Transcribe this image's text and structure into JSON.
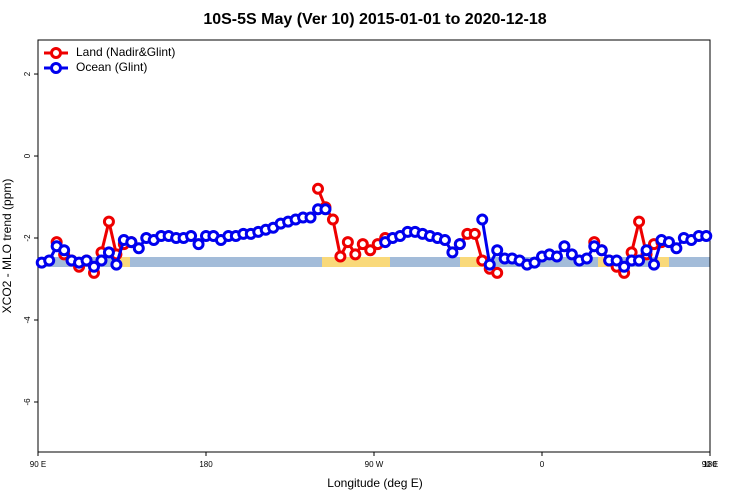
{
  "chart_data": {
    "type": "line",
    "title": "10S-5S May (Ver 10)   2015-01-01 to 2020-12-18",
    "xlabel": "Longitude (deg E)",
    "ylabel": "XCO2 - MLO trend (ppm)",
    "x": [
      92,
      96,
      100,
      104,
      108,
      112,
      116,
      120,
      124,
      128,
      132,
      136,
      140,
      144,
      148,
      152,
      156,
      160,
      164,
      168,
      172,
      176,
      180,
      184,
      188,
      192,
      196,
      200,
      204,
      208,
      212,
      216,
      220,
      224,
      228,
      232,
      236,
      240,
      244,
      248,
      252,
      256,
      260,
      264,
      268,
      272,
      276,
      280,
      284,
      288,
      292,
      296,
      300,
      304,
      308,
      312,
      316,
      320,
      324,
      328,
      332,
      336,
      340,
      344,
      348,
      352,
      356,
      360,
      364,
      368,
      372,
      376,
      380,
      384,
      388,
      392,
      396,
      400,
      404,
      408,
      412,
      416,
      420,
      424,
      428,
      432,
      436,
      440,
      444,
      448
    ],
    "series": [
      {
        "name": "Land (Nadir&Glint)",
        "color": "#ee0000",
        "values": [
          null,
          null,
          -2.1,
          -2.4,
          -2.55,
          -2.7,
          -2.55,
          -2.85,
          -2.35,
          -1.6,
          -2.4,
          -2.15,
          -2.1,
          null,
          null,
          null,
          null,
          null,
          null,
          null,
          null,
          null,
          null,
          null,
          null,
          null,
          null,
          null,
          null,
          null,
          null,
          null,
          null,
          null,
          null,
          null,
          null,
          -0.8,
          -1.25,
          -1.55,
          -2.45,
          -2.1,
          -2.4,
          -2.15,
          -2.3,
          -2.15,
          -2.0,
          null,
          null,
          null,
          null,
          null,
          null,
          null,
          null,
          null,
          -2.15,
          -1.9,
          -1.9,
          -2.55,
          -2.75,
          -2.85,
          null,
          null,
          null,
          null,
          null,
          null,
          null,
          null,
          null,
          null,
          null,
          null,
          -2.1,
          -2.3,
          -2.55,
          -2.7,
          -2.85,
          -2.35,
          -1.6,
          -2.4,
          -2.15,
          -2.1,
          null,
          null,
          null,
          null,
          null,
          null
        ]
      },
      {
        "name": "Ocean (Glint)",
        "color": "#0000ee",
        "values": [
          -2.6,
          -2.55,
          -2.2,
          -2.3,
          -2.55,
          -2.6,
          -2.55,
          -2.7,
          -2.55,
          -2.35,
          -2.65,
          -2.05,
          -2.1,
          -2.25,
          -2.0,
          -2.05,
          -1.95,
          -1.95,
          -2.0,
          -2.0,
          -1.95,
          -2.15,
          -1.95,
          -1.95,
          -2.05,
          -1.95,
          -1.95,
          -1.9,
          -1.9,
          -1.85,
          -1.8,
          -1.75,
          -1.65,
          -1.6,
          -1.55,
          -1.5,
          -1.5,
          -1.3,
          -1.3,
          null,
          null,
          null,
          null,
          null,
          null,
          null,
          -2.1,
          -2.0,
          -1.95,
          -1.85,
          -1.85,
          -1.9,
          -1.95,
          -2.0,
          -2.05,
          -2.35,
          -2.15,
          null,
          null,
          -1.55,
          -2.65,
          -2.3,
          -2.5,
          -2.5,
          -2.55,
          -2.65,
          -2.6,
          -2.45,
          -2.4,
          -2.45,
          -2.2,
          -2.4,
          -2.55,
          -2.5,
          -2.2,
          -2.3,
          -2.55,
          -2.55,
          -2.7,
          -2.55,
          -2.55,
          -2.3,
          -2.65,
          -2.05,
          -2.1,
          -2.25,
          -2.0,
          -2.05,
          -1.95,
          -1.95
        ]
      }
    ],
    "xlim": [
      90,
      450
    ],
    "xticks": [
      {
        "value": 90,
        "label": "90 E"
      },
      180,
      {
        "value": 270,
        "label": "90 W"
      },
      {
        "value": 360,
        "label": "0"
      },
      {
        "value": 450,
        "label": "90 E"
      },
      {
        "value": 540,
        "label": "180"
      }
    ],
    "ylim": [
      -7.22,
      2.83
    ],
    "yticks": [
      -6,
      -4,
      -2,
      0,
      2
    ],
    "legend": "upper left"
  }
}
